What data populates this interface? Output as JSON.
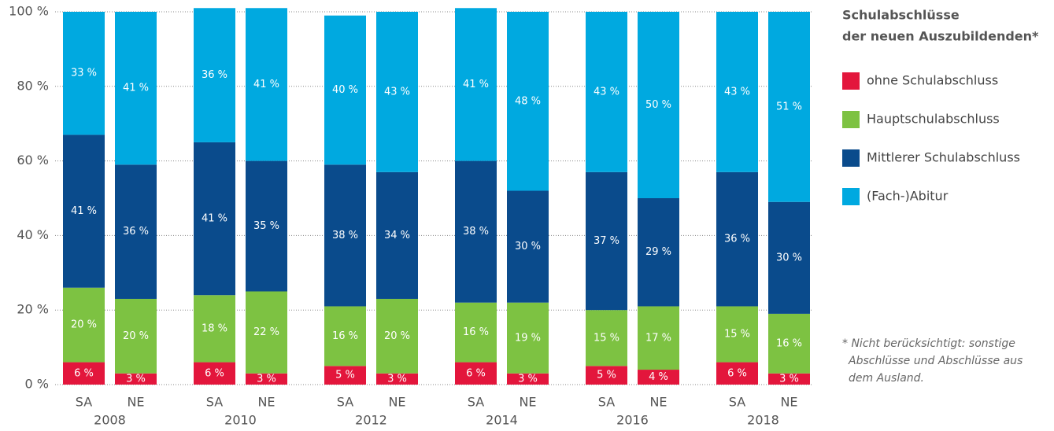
{
  "chart_data": {
    "type": "stacked_bar",
    "title": [
      "Schulabschlüsse",
      "der neuen Auszubildenden*"
    ],
    "footnote": [
      "* Nicht berücksichtigt: sonstige",
      "Abschlüsse und Abschlüsse aus",
      "dem Ausland."
    ],
    "categories": [
      "SA",
      "NE",
      "SA",
      "NE",
      "SA",
      "NE",
      "SA",
      "NE",
      "SA",
      "NE",
      "SA",
      "NE"
    ],
    "groups": [
      "2008",
      "2010",
      "2012",
      "2014",
      "2016",
      "2018"
    ],
    "series": [
      {
        "name": "ohne Schulabschluss",
        "color": "#e3163c",
        "values": [
          6,
          3,
          6,
          3,
          5,
          3,
          6,
          3,
          5,
          4,
          6,
          3
        ],
        "value_labels": [
          "6 %",
          "3 %",
          "6 %",
          "3 %",
          "5 %",
          "3 %",
          "6 %",
          "3 %",
          "5 %",
          "4 %",
          "6 %",
          "3 %"
        ]
      },
      {
        "name": "Hauptschulabschluss",
        "color": "#7dc242",
        "values": [
          20,
          20,
          18,
          22,
          16,
          20,
          16,
          19,
          15,
          17,
          15,
          16
        ],
        "value_labels": [
          "20 %",
          "20 %",
          "18 %",
          "22 %",
          "16 %",
          "20 %",
          "16 %",
          "19 %",
          "15 %",
          "17 %",
          "15 %",
          "16 %"
        ]
      },
      {
        "name": "Mittlerer Schulabschluss",
        "color": "#0a4b8c",
        "values": [
          41,
          36,
          41,
          35,
          38,
          34,
          38,
          30,
          37,
          29,
          36,
          30
        ],
        "value_labels": [
          "41 %",
          "36 %",
          "41 %",
          "35 %",
          "38 %",
          "34 %",
          "38 %",
          "30 %",
          "37 %",
          "29 %",
          "36 %",
          "30 %"
        ]
      },
      {
        "name": "(Fach-)Abitur",
        "color": "#00a9e0",
        "values": [
          33,
          41,
          36,
          41,
          40,
          43,
          41,
          48,
          43,
          50,
          43,
          51
        ],
        "value_labels": [
          "33 %",
          "41 %",
          "36 %",
          "41 %",
          "40 %",
          "43 %",
          "41 %",
          "48 %",
          "43 %",
          "50 %",
          "43 %",
          "51 %"
        ]
      }
    ],
    "ylim": [
      0,
      100
    ],
    "yticks": [
      {
        "value": 0,
        "label": "0 %"
      },
      {
        "value": 20,
        "label": "20 %"
      },
      {
        "value": 40,
        "label": "40 %"
      },
      {
        "value": 60,
        "label": "60 %"
      },
      {
        "value": 80,
        "label": "80 %"
      },
      {
        "value": 100,
        "label": "100 %"
      }
    ],
    "grid": true
  }
}
